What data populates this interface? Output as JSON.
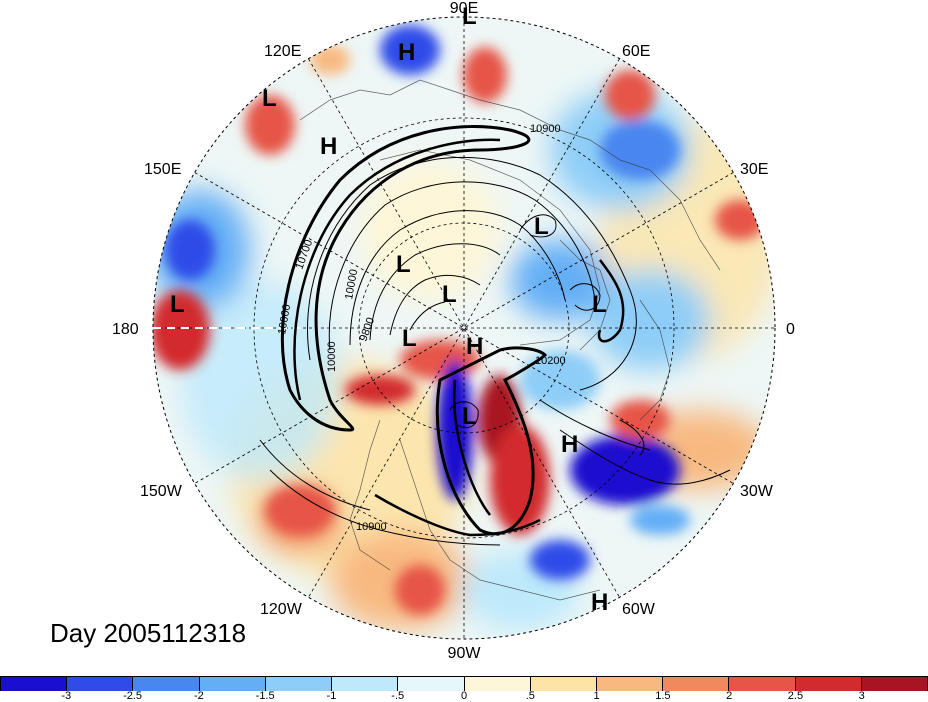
{
  "title": "Day 2005112318",
  "longitude_labels": {
    "e90": "90E",
    "e60": "60E",
    "e30": "30E",
    "zero": "0",
    "w30": "30W",
    "w60": "60W",
    "w90": "90W",
    "w120": "120W",
    "w150": "150W",
    "d180": "180",
    "e150": "150E",
    "e120": "120E"
  },
  "contour_labels": [
    "10900",
    "10900",
    "10700",
    "10000",
    "10000",
    "9800",
    "10000",
    "10200"
  ],
  "pressure_centers": {
    "high": "H",
    "low": "L"
  },
  "colorbar": {
    "colors": [
      "#1a0fcf",
      "#2f4ce8",
      "#4a86f0",
      "#64aef5",
      "#8ecdf7",
      "#bde9fb",
      "#e6f7fb",
      "#fdf6d8",
      "#fde3a6",
      "#f8b981",
      "#f08a5e",
      "#e65546",
      "#d22b2f",
      "#a81423"
    ],
    "tick_labels": [
      "-3",
      "-2.5",
      "-2",
      "-1.5",
      "-1",
      "-.5",
      "0",
      ".5",
      "1",
      "1.5",
      "2",
      "2.5",
      "3"
    ]
  },
  "colors": {
    "background": "#ffffff",
    "ocean_base": "#eaf6fb"
  }
}
